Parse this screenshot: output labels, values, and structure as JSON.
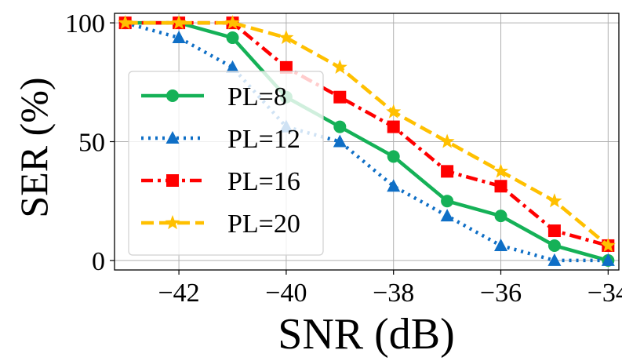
{
  "chart_data": {
    "type": "line",
    "title": "",
    "xlabel": "SNR (dB)",
    "ylabel": "SER (%)",
    "xlim": [
      -43.2,
      -33.8
    ],
    "ylim": [
      -4,
      104
    ],
    "x": [
      -43,
      -42,
      -41,
      -40,
      -39,
      -38,
      -37,
      -36,
      -35,
      -34
    ],
    "xticks": [
      -42,
      -40,
      -38,
      -36,
      -34
    ],
    "xtick_labels": [
      "−42",
      "−40",
      "−38",
      "−36",
      "−34"
    ],
    "yticks": [
      0,
      50,
      100
    ],
    "ytick_labels": [
      "0",
      "50",
      "100"
    ],
    "grid": true,
    "legend_position": "center-left",
    "series": [
      {
        "name": "PL=8",
        "color": "#15b157",
        "linestyle": "solid",
        "marker": "circle",
        "values": [
          100,
          100,
          93.75,
          68.75,
          56.25,
          43.75,
          25,
          18.75,
          6.25,
          0
        ]
      },
      {
        "name": "PL=12",
        "color": "#0f6fc6",
        "linestyle": "dotted",
        "marker": "triangle",
        "values": [
          100,
          93.75,
          81.25,
          56.25,
          50,
          31.25,
          18.75,
          6.25,
          0,
          0
        ]
      },
      {
        "name": "PL=16",
        "color": "#ff0000",
        "linestyle": "dashdot",
        "marker": "square",
        "values": [
          100,
          100,
          100,
          81.25,
          68.75,
          56.25,
          37.5,
          31.25,
          12.5,
          6.25
        ]
      },
      {
        "name": "PL=20",
        "color": "#ffc000",
        "linestyle": "dashed",
        "marker": "star",
        "values": [
          100,
          100,
          100,
          93.75,
          81.25,
          62.5,
          50,
          37.5,
          25,
          6.25
        ]
      }
    ]
  }
}
